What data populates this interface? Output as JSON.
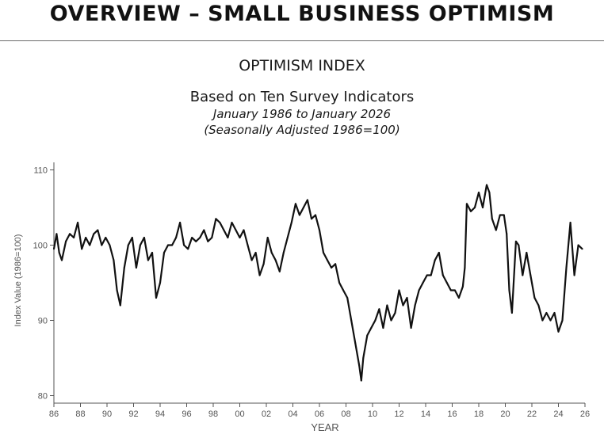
{
  "header": {
    "title": "OVERVIEW – SMALL BUSINESS OPTIMISM"
  },
  "chart_data": {
    "type": "line",
    "title": "OPTIMISM INDEX",
    "subtitle": "Based on Ten Survey Indicators",
    "period": "January 1986 to January 2026",
    "note": "(Seasonally Adjusted 1986=100)",
    "xlabel": "YEAR",
    "ylabel": "Index Value (1986=100)",
    "ylim": [
      79,
      111
    ],
    "xlim": [
      1986,
      2026
    ],
    "y_ticks": [
      80,
      90,
      100,
      110
    ],
    "x_ticks": [
      {
        "value": 1986,
        "label": "86"
      },
      {
        "value": 1988,
        "label": "88"
      },
      {
        "value": 1990,
        "label": "90"
      },
      {
        "value": 1992,
        "label": "92"
      },
      {
        "value": 1994,
        "label": "94"
      },
      {
        "value": 1996,
        "label": "96"
      },
      {
        "value": 1998,
        "label": "98"
      },
      {
        "value": 2000,
        "label": "00"
      },
      {
        "value": 2002,
        "label": "02"
      },
      {
        "value": 2004,
        "label": "04"
      },
      {
        "value": 2006,
        "label": "06"
      },
      {
        "value": 2008,
        "label": "08"
      },
      {
        "value": 2010,
        "label": "10"
      },
      {
        "value": 2012,
        "label": "12"
      },
      {
        "value": 2014,
        "label": "14"
      },
      {
        "value": 2016,
        "label": "16"
      },
      {
        "value": 2018,
        "label": "18"
      },
      {
        "value": 2020,
        "label": "20"
      },
      {
        "value": 2022,
        "label": "22"
      },
      {
        "value": 2024,
        "label": "24"
      },
      {
        "value": 2026,
        "label": "26"
      }
    ],
    "series": [
      {
        "name": "Optimism Index",
        "color": "#111111",
        "x": [
          1986.0,
          1986.2,
          1986.4,
          1986.6,
          1986.9,
          1987.2,
          1987.5,
          1987.8,
          1988.1,
          1988.4,
          1988.7,
          1989.0,
          1989.3,
          1989.6,
          1989.9,
          1990.2,
          1990.5,
          1990.75,
          1991.0,
          1991.3,
          1991.6,
          1991.9,
          1992.2,
          1992.5,
          1992.8,
          1993.1,
          1993.4,
          1993.7,
          1994.0,
          1994.3,
          1994.6,
          1994.9,
          1995.2,
          1995.5,
          1995.8,
          1996.1,
          1996.4,
          1996.7,
          1997.0,
          1997.3,
          1997.6,
          1997.9,
          1998.2,
          1998.5,
          1998.8,
          1999.1,
          1999.4,
          1999.7,
          2000.0,
          2000.3,
          2000.6,
          2000.9,
          2001.2,
          2001.5,
          2001.8,
          2002.1,
          2002.4,
          2002.7,
          2003.0,
          2003.3,
          2003.6,
          2003.9,
          2004.2,
          2004.5,
          2004.8,
          2005.1,
          2005.4,
          2005.7,
          2006.0,
          2006.3,
          2006.6,
          2006.9,
          2007.2,
          2007.5,
          2007.8,
          2008.1,
          2008.4,
          2008.7,
          2009.0,
          2009.15,
          2009.3,
          2009.6,
          2009.9,
          2010.2,
          2010.5,
          2010.8,
          2011.1,
          2011.4,
          2011.7,
          2012.0,
          2012.3,
          2012.6,
          2012.9,
          2013.2,
          2013.5,
          2013.8,
          2014.1,
          2014.4,
          2014.7,
          2015.0,
          2015.3,
          2015.6,
          2015.9,
          2016.2,
          2016.5,
          2016.8,
          2016.95,
          2017.1,
          2017.4,
          2017.7,
          2018.0,
          2018.3,
          2018.6,
          2018.8,
          2019.0,
          2019.3,
          2019.6,
          2019.9,
          2020.1,
          2020.3,
          2020.5,
          2020.8,
          2021.0,
          2021.3,
          2021.6,
          2021.9,
          2022.2,
          2022.5,
          2022.8,
          2023.1,
          2023.4,
          2023.7,
          2024.0,
          2024.3,
          2024.6,
          2024.9,
          2025.2,
          2025.5,
          2025.8
        ],
        "values": [
          99.5,
          101.5,
          99,
          98,
          100.5,
          101.5,
          101,
          103,
          99.5,
          101,
          100,
          101.5,
          102,
          100,
          101,
          100,
          98,
          94,
          92,
          97,
          100,
          101,
          97,
          100,
          101,
          98,
          99,
          93,
          95,
          99,
          100,
          100,
          101,
          103,
          100,
          99.5,
          101,
          100.5,
          101,
          102,
          100.5,
          101,
          103.5,
          103,
          102,
          101,
          103,
          102,
          101,
          102,
          100,
          98,
          99,
          96,
          97.5,
          101,
          99,
          98,
          96.5,
          99,
          101,
          103,
          105.5,
          104,
          105,
          106,
          103.5,
          104,
          102,
          99,
          98,
          97,
          97.5,
          95,
          94,
          93,
          90,
          87,
          84,
          82,
          85,
          88,
          89,
          90,
          91.5,
          89,
          92,
          90,
          91,
          94,
          92,
          93,
          89,
          92,
          94,
          95,
          96,
          96,
          98,
          99,
          96,
          95,
          94,
          94,
          93,
          94.5,
          97,
          105.5,
          104.5,
          105,
          107,
          105,
          108,
          107,
          103.5,
          102,
          104,
          104,
          101.5,
          94,
          91,
          100.5,
          100,
          96,
          99,
          96,
          93,
          92,
          90,
          91,
          90,
          91,
          88.5,
          90,
          97,
          103,
          96,
          100,
          99.5
        ]
      }
    ]
  }
}
